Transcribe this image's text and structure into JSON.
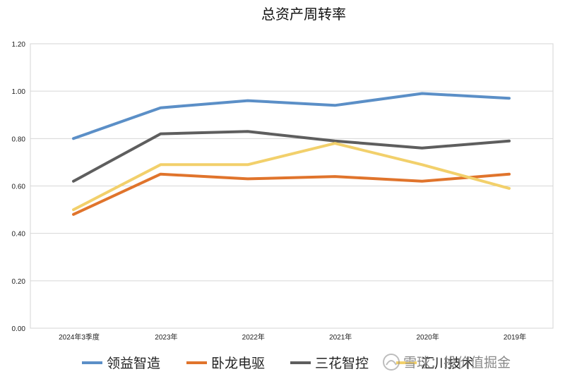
{
  "chart_data": {
    "type": "line",
    "title": "总资产周转率",
    "categories": [
      "2024年3季度",
      "2023年",
      "2022年",
      "2021年",
      "2020年",
      "2019年"
    ],
    "ylim": [
      0,
      1.2
    ],
    "yticks": [
      "0.00",
      "0.20",
      "0.40",
      "0.60",
      "0.80",
      "1.00",
      "1.20"
    ],
    "grid": true,
    "legend_position": "bottom",
    "series": [
      {
        "name": "领益智造",
        "color": "#5b8fc7",
        "values": [
          0.8,
          0.93,
          0.96,
          0.94,
          0.99,
          0.97
        ]
      },
      {
        "name": "卧龙电驱",
        "color": "#e0742c",
        "values": [
          0.48,
          0.65,
          0.63,
          0.64,
          0.62,
          0.65
        ]
      },
      {
        "name": "三花智控",
        "color": "#5e5e5e",
        "values": [
          0.62,
          0.82,
          0.83,
          0.79,
          0.76,
          0.79
        ]
      },
      {
        "name": "汇川技术",
        "color": "#f2d06b",
        "values": [
          0.5,
          0.69,
          0.69,
          0.78,
          0.69,
          0.59
        ]
      }
    ]
  },
  "watermark": {
    "text": "雪球：投价值掘金"
  }
}
